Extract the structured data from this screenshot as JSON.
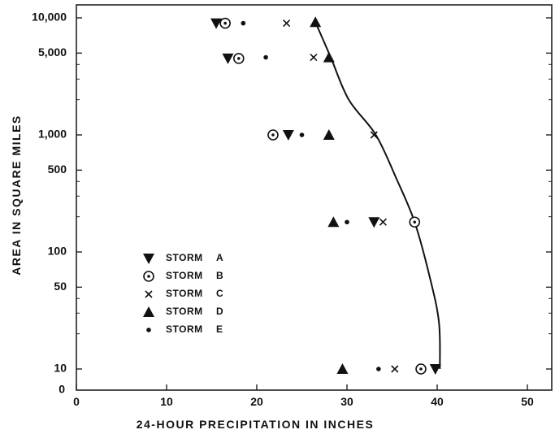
{
  "chart_data": {
    "type": "scatter",
    "xlabel": "24-HOUR PRECIPITATION IN INCHES",
    "ylabel": "AREA IN SQUARE MILES",
    "x_ticks": [
      "0",
      "10",
      "20",
      "30",
      "40",
      "50"
    ],
    "y_ticks": [
      {
        "value": 10000,
        "label": "10,000"
      },
      {
        "value": 5000,
        "label": "5,000"
      },
      {
        "value": 1000,
        "label": "1,000"
      },
      {
        "value": 500,
        "label": "500"
      },
      {
        "value": 100,
        "label": "100"
      },
      {
        "value": 50,
        "label": "50"
      },
      {
        "value": 10,
        "label": "10"
      }
    ],
    "y_zero_label": "0",
    "xlim": [
      0,
      54
    ],
    "ylim": [
      7,
      10500
    ],
    "y_scale": "log",
    "grid": false,
    "legend_position": "left-middle",
    "series": [
      {
        "name": "STORM A",
        "marker": "triangle-down",
        "points": [
          [
            15.5,
            9000
          ],
          [
            16.8,
            4500
          ],
          [
            23.5,
            1000
          ],
          [
            33,
            180
          ],
          [
            39.8,
            10
          ]
        ]
      },
      {
        "name": "STORM B",
        "marker": "circled-dot",
        "points": [
          [
            16.5,
            9000
          ],
          [
            18,
            4500
          ],
          [
            21.8,
            1000
          ],
          [
            37.5,
            180
          ],
          [
            38.2,
            10
          ]
        ]
      },
      {
        "name": "STORM C",
        "marker": "x",
        "points": [
          [
            23.3,
            9000
          ],
          [
            26.3,
            4600
          ],
          [
            33,
            1000
          ],
          [
            34,
            180
          ],
          [
            35.3,
            10
          ]
        ]
      },
      {
        "name": "STORM D",
        "marker": "triangle-up",
        "points": [
          [
            26.5,
            9200
          ],
          [
            28,
            4600
          ],
          [
            28,
            1000
          ],
          [
            28.5,
            180
          ],
          [
            29.5,
            10
          ]
        ]
      },
      {
        "name": "STORM E",
        "marker": "dot",
        "points": [
          [
            18.5,
            9000
          ],
          [
            21,
            4600
          ],
          [
            25,
            1000
          ],
          [
            30,
            180
          ],
          [
            33.5,
            10
          ]
        ]
      }
    ],
    "envelope_curve": [
      [
        26.5,
        9200
      ],
      [
        28.2,
        4600
      ],
      [
        30.2,
        2000
      ],
      [
        33.2,
        1000
      ],
      [
        35.5,
        420
      ],
      [
        37.5,
        180
      ],
      [
        39.2,
        60
      ],
      [
        40.2,
        25
      ],
      [
        40.3,
        10
      ]
    ]
  }
}
